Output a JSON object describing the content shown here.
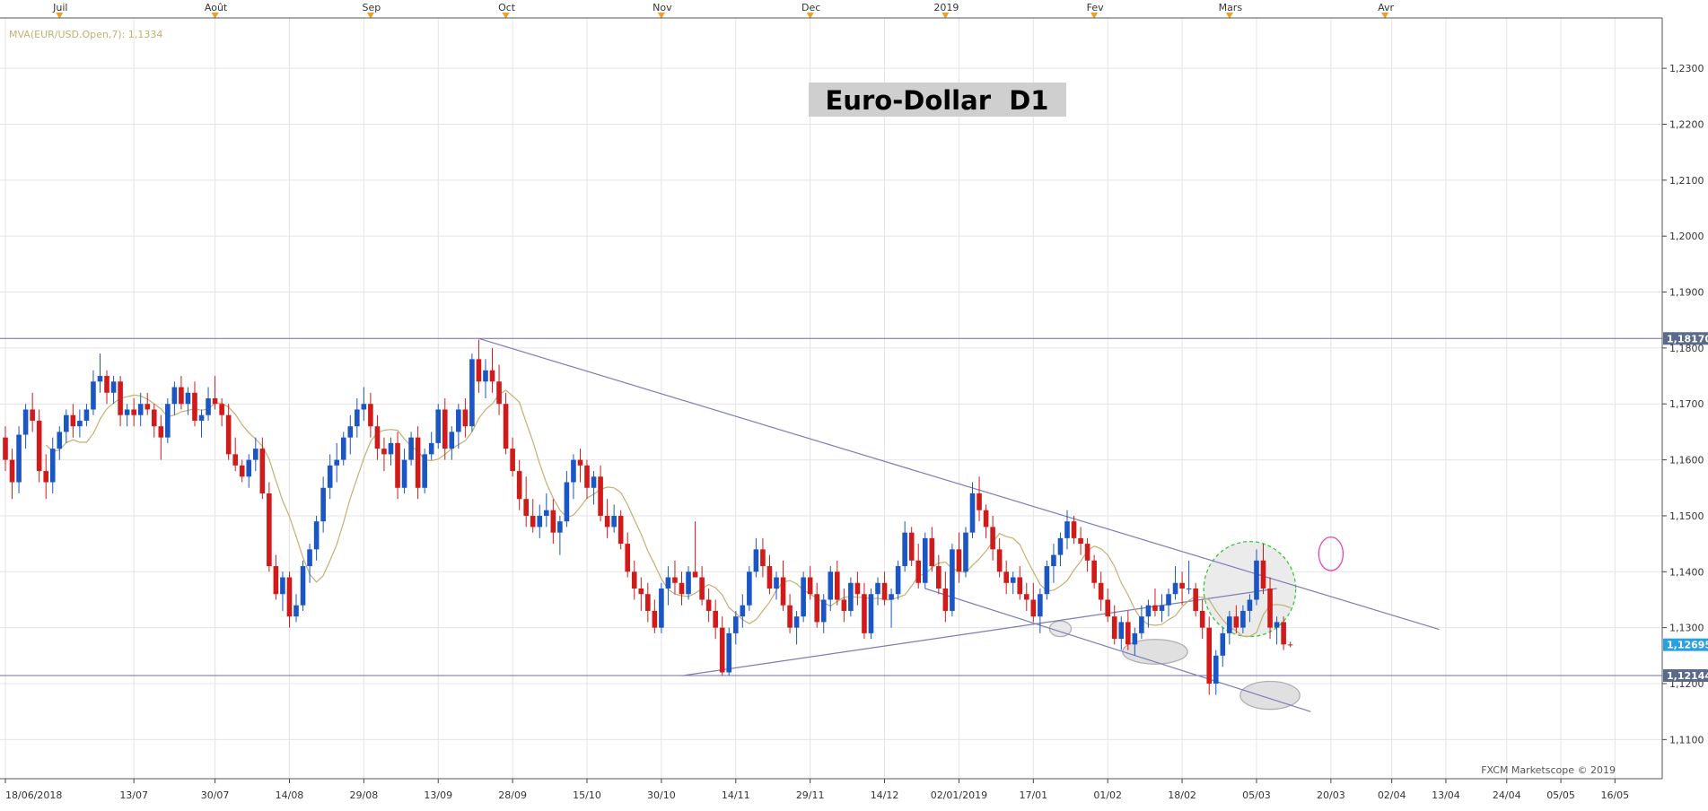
{
  "chart_data": {
    "type": "candlestick",
    "title": "Euro-Dollar  D1",
    "indicator_label": "MVA(EUR/USD.Open,7): 1,1334",
    "watermark": "FXCM Marketscope © 2019",
    "y_range": [
      1.103,
      1.239
    ],
    "y_ticks": [
      "1,1100",
      "1,1200",
      "1,1300",
      "1,1400",
      "1,1500",
      "1,1600",
      "1,1700",
      "1,1800",
      "1,1900",
      "1,2000",
      "1,2100",
      "1,2200",
      "1,2300"
    ],
    "y_tick_values": [
      1.11,
      1.12,
      1.13,
      1.14,
      1.15,
      1.16,
      1.17,
      1.18,
      1.19,
      1.2,
      1.21,
      1.22,
      1.23
    ],
    "x_tick_labels": [
      {
        "bar": 0,
        "label": "18/06/2018"
      },
      {
        "bar": 19,
        "label": "13/07"
      },
      {
        "bar": 31,
        "label": "30/07"
      },
      {
        "bar": 42,
        "label": "14/08"
      },
      {
        "bar": 53,
        "label": "29/08"
      },
      {
        "bar": 64,
        "label": "13/09"
      },
      {
        "bar": 75,
        "label": "28/09"
      },
      {
        "bar": 86,
        "label": "15/10"
      },
      {
        "bar": 97,
        "label": "30/10"
      },
      {
        "bar": 108,
        "label": "14/11"
      },
      {
        "bar": 119,
        "label": "29/11"
      },
      {
        "bar": 130,
        "label": "14/12"
      },
      {
        "bar": 141,
        "label": "02/01/2019"
      },
      {
        "bar": 152,
        "label": "17/01"
      },
      {
        "bar": 163,
        "label": "01/02"
      },
      {
        "bar": 174,
        "label": "18/02"
      },
      {
        "bar": 185,
        "label": "05/03"
      },
      {
        "bar": 196,
        "label": "20/03"
      },
      {
        "bar": 205,
        "label": "02/04"
      },
      {
        "bar": 213,
        "label": "13/04"
      },
      {
        "bar": 222,
        "label": "24/04"
      },
      {
        "bar": 230,
        "label": "05/05"
      },
      {
        "bar": 238,
        "label": "16/05"
      }
    ],
    "month_labels": [
      {
        "bar": 8,
        "label": "Juil"
      },
      {
        "bar": 31,
        "label": "Août"
      },
      {
        "bar": 54,
        "label": "Sep"
      },
      {
        "bar": 74,
        "label": "Oct"
      },
      {
        "bar": 97,
        "label": "Nov"
      },
      {
        "bar": 119,
        "label": "Dec"
      },
      {
        "bar": 139,
        "label": "2019"
      },
      {
        "bar": 161,
        "label": "Fev"
      },
      {
        "bar": 181,
        "label": "Mars"
      },
      {
        "bar": 204,
        "label": "Avr"
      }
    ],
    "price_markers": [
      {
        "value": 1.1817,
        "label": "1,18170",
        "color": "#5a6a8a"
      },
      {
        "value": 1.12144,
        "label": "1,12144",
        "color": "#5a6a8a"
      },
      {
        "value": 1.12695,
        "label": "1,12695",
        "color": "#2aa0e0"
      }
    ],
    "colors": {
      "up": "#1a56c4",
      "down": "#d11a1a",
      "ma": "#c2b070",
      "trend": "#7c7cb8",
      "grid": "#e4e4e4"
    },
    "horizontal_lines": [
      1.1817,
      1.12144
    ],
    "trend_lines": [
      {
        "from": [
          70,
          1.1817
        ],
        "to": [
          212,
          1.1297
        ]
      },
      {
        "from": [
          100,
          1.1214
        ],
        "to": [
          188,
          1.137
        ]
      },
      {
        "from": [
          136,
          1.137
        ],
        "to": [
          193,
          1.115
        ]
      }
    ],
    "ellipse_markers": [
      {
        "bar": 156,
        "value": 1.1298,
        "rx_bars": 1.6,
        "ry": 0.0014,
        "color": "#b0b0b0",
        "fill": "#e8e8e8"
      },
      {
        "bar": 170,
        "value": 1.1257,
        "rx_bars": 4.8,
        "ry": 0.0022,
        "color": "#b0b0b0",
        "fill": "#e0e0e0"
      },
      {
        "bar": 187,
        "value": 1.1179,
        "rx_bars": 4.4,
        "ry": 0.0025,
        "color": "#b0b0b0",
        "fill": "#e0e0e0"
      },
      {
        "bar": 184,
        "value": 1.1369,
        "rx_bars": 6.8,
        "ry": 0.0085,
        "color": "#33cc33",
        "fill": "#ebebeb",
        "dashed": true
      },
      {
        "bar": 196,
        "value": 1.1432,
        "rx_bars": 1.8,
        "ry": 0.003,
        "color": "#ee44aa",
        "fill": "none"
      }
    ],
    "candles": [
      [
        1.164,
        1.166,
        1.158,
        1.16
      ],
      [
        1.16,
        1.162,
        1.153,
        1.156
      ],
      [
        1.156,
        1.166,
        1.154,
        1.1645
      ],
      [
        1.1645,
        1.17,
        1.162,
        1.169
      ],
      [
        1.169,
        1.172,
        1.165,
        1.167
      ],
      [
        1.167,
        1.169,
        1.156,
        1.158
      ],
      [
        1.158,
        1.161,
        1.153,
        1.156
      ],
      [
        1.156,
        1.164,
        1.154,
        1.162
      ],
      [
        1.162,
        1.166,
        1.16,
        1.165
      ],
      [
        1.165,
        1.169,
        1.163,
        1.168
      ],
      [
        1.168,
        1.17,
        1.164,
        1.166
      ],
      [
        1.166,
        1.169,
        1.164,
        1.167
      ],
      [
        1.167,
        1.17,
        1.166,
        1.169
      ],
      [
        1.169,
        1.176,
        1.168,
        1.174
      ],
      [
        1.174,
        1.179,
        1.172,
        1.175
      ],
      [
        1.175,
        1.176,
        1.17,
        1.172
      ],
      [
        1.172,
        1.175,
        1.17,
        1.174
      ],
      [
        1.174,
        1.175,
        1.166,
        1.168
      ],
      [
        1.168,
        1.17,
        1.166,
        1.169
      ],
      [
        1.169,
        1.171,
        1.166,
        1.168
      ],
      [
        1.168,
        1.172,
        1.166,
        1.17
      ],
      [
        1.17,
        1.172,
        1.168,
        1.169
      ],
      [
        1.169,
        1.17,
        1.164,
        1.166
      ],
      [
        1.166,
        1.168,
        1.16,
        1.164
      ],
      [
        1.164,
        1.171,
        1.163,
        1.17
      ],
      [
        1.17,
        1.174,
        1.168,
        1.173
      ],
      [
        1.173,
        1.175,
        1.169,
        1.17
      ],
      [
        1.17,
        1.173,
        1.168,
        1.172
      ],
      [
        1.172,
        1.174,
        1.166,
        1.167
      ],
      [
        1.167,
        1.169,
        1.164,
        1.168
      ],
      [
        1.168,
        1.173,
        1.167,
        1.171
      ],
      [
        1.171,
        1.175,
        1.169,
        1.17
      ],
      [
        1.17,
        1.171,
        1.166,
        1.168
      ],
      [
        1.168,
        1.17,
        1.16,
        1.161
      ],
      [
        1.161,
        1.164,
        1.158,
        1.159
      ],
      [
        1.159,
        1.16,
        1.156,
        1.157
      ],
      [
        1.157,
        1.161,
        1.155,
        1.16
      ],
      [
        1.16,
        1.164,
        1.158,
        1.162
      ],
      [
        1.162,
        1.164,
        1.153,
        1.154
      ],
      [
        1.154,
        1.156,
        1.14,
        1.141
      ],
      [
        1.141,
        1.143,
        1.135,
        1.136
      ],
      [
        1.136,
        1.14,
        1.133,
        1.139
      ],
      [
        1.139,
        1.14,
        1.13,
        1.132
      ],
      [
        1.132,
        1.136,
        1.131,
        1.134
      ],
      [
        1.134,
        1.142,
        1.133,
        1.141
      ],
      [
        1.141,
        1.145,
        1.138,
        1.144
      ],
      [
        1.144,
        1.15,
        1.142,
        1.149
      ],
      [
        1.149,
        1.157,
        1.147,
        1.155
      ],
      [
        1.155,
        1.161,
        1.153,
        1.159
      ],
      [
        1.159,
        1.163,
        1.156,
        1.16
      ],
      [
        1.16,
        1.165,
        1.159,
        1.164
      ],
      [
        1.164,
        1.168,
        1.161,
        1.166
      ],
      [
        1.166,
        1.171,
        1.164,
        1.169
      ],
      [
        1.169,
        1.173,
        1.167,
        1.17
      ],
      [
        1.17,
        1.172,
        1.164,
        1.166
      ],
      [
        1.166,
        1.168,
        1.16,
        1.162
      ],
      [
        1.162,
        1.164,
        1.158,
        1.161
      ],
      [
        1.161,
        1.164,
        1.159,
        1.163
      ],
      [
        1.163,
        1.165,
        1.153,
        1.155
      ],
      [
        1.155,
        1.162,
        1.154,
        1.16
      ],
      [
        1.16,
        1.165,
        1.159,
        1.164
      ],
      [
        1.164,
        1.166,
        1.153,
        1.155
      ],
      [
        1.155,
        1.162,
        1.154,
        1.161
      ],
      [
        1.161,
        1.165,
        1.16,
        1.163
      ],
      [
        1.163,
        1.17,
        1.162,
        1.169
      ],
      [
        1.169,
        1.171,
        1.16,
        1.162
      ],
      [
        1.162,
        1.166,
        1.16,
        1.165
      ],
      [
        1.165,
        1.17,
        1.162,
        1.169
      ],
      [
        1.169,
        1.171,
        1.164,
        1.166
      ],
      [
        1.166,
        1.179,
        1.165,
        1.178
      ],
      [
        1.178,
        1.1815,
        1.172,
        1.174
      ],
      [
        1.174,
        1.178,
        1.171,
        1.176
      ],
      [
        1.176,
        1.18,
        1.172,
        1.174
      ],
      [
        1.174,
        1.177,
        1.168,
        1.17
      ],
      [
        1.17,
        1.172,
        1.161,
        1.162
      ],
      [
        1.162,
        1.164,
        1.157,
        1.158
      ],
      [
        1.158,
        1.16,
        1.151,
        1.153
      ],
      [
        1.153,
        1.157,
        1.148,
        1.15
      ],
      [
        1.15,
        1.153,
        1.147,
        1.148
      ],
      [
        1.148,
        1.152,
        1.146,
        1.15
      ],
      [
        1.15,
        1.154,
        1.148,
        1.151
      ],
      [
        1.151,
        1.153,
        1.145,
        1.147
      ],
      [
        1.147,
        1.15,
        1.143,
        1.149
      ],
      [
        1.149,
        1.158,
        1.148,
        1.156
      ],
      [
        1.156,
        1.161,
        1.153,
        1.16
      ],
      [
        1.16,
        1.162,
        1.156,
        1.159
      ],
      [
        1.159,
        1.16,
        1.153,
        1.155
      ],
      [
        1.155,
        1.158,
        1.152,
        1.157
      ],
      [
        1.157,
        1.159,
        1.149,
        1.15
      ],
      [
        1.15,
        1.153,
        1.146,
        1.148
      ],
      [
        1.148,
        1.152,
        1.147,
        1.15
      ],
      [
        1.15,
        1.151,
        1.144,
        1.145
      ],
      [
        1.145,
        1.147,
        1.139,
        1.14
      ],
      [
        1.14,
        1.142,
        1.135,
        1.137
      ],
      [
        1.137,
        1.139,
        1.133,
        1.136
      ],
      [
        1.136,
        1.138,
        1.131,
        1.133
      ],
      [
        1.133,
        1.135,
        1.129,
        1.13
      ],
      [
        1.13,
        1.138,
        1.129,
        1.137
      ],
      [
        1.137,
        1.141,
        1.134,
        1.139
      ],
      [
        1.139,
        1.142,
        1.136,
        1.138
      ],
      [
        1.138,
        1.14,
        1.134,
        1.136
      ],
      [
        1.136,
        1.141,
        1.135,
        1.14
      ],
      [
        1.14,
        1.149,
        1.139,
        1.139
      ],
      [
        1.139,
        1.141,
        1.134,
        1.135
      ],
      [
        1.135,
        1.137,
        1.131,
        1.133
      ],
      [
        1.133,
        1.135,
        1.128,
        1.13
      ],
      [
        1.13,
        1.132,
        1.1214,
        1.122
      ],
      [
        1.122,
        1.13,
        1.1214,
        1.129
      ],
      [
        1.129,
        1.133,
        1.127,
        1.132
      ],
      [
        1.132,
        1.136,
        1.13,
        1.134
      ],
      [
        1.134,
        1.141,
        1.133,
        1.14
      ],
      [
        1.14,
        1.146,
        1.139,
        1.144
      ],
      [
        1.144,
        1.146,
        1.139,
        1.141
      ],
      [
        1.141,
        1.143,
        1.136,
        1.137
      ],
      [
        1.137,
        1.14,
        1.135,
        1.139
      ],
      [
        1.139,
        1.142,
        1.133,
        1.134
      ],
      [
        1.134,
        1.136,
        1.129,
        1.13
      ],
      [
        1.13,
        1.133,
        1.127,
        1.132
      ],
      [
        1.132,
        1.14,
        1.131,
        1.139
      ],
      [
        1.139,
        1.141,
        1.135,
        1.136
      ],
      [
        1.136,
        1.138,
        1.13,
        1.131
      ],
      [
        1.131,
        1.136,
        1.129,
        1.135
      ],
      [
        1.135,
        1.141,
        1.133,
        1.14
      ],
      [
        1.14,
        1.142,
        1.134,
        1.135
      ],
      [
        1.135,
        1.137,
        1.131,
        1.133
      ],
      [
        1.133,
        1.139,
        1.132,
        1.138
      ],
      [
        1.138,
        1.14,
        1.134,
        1.136
      ],
      [
        1.136,
        1.138,
        1.128,
        1.129
      ],
      [
        1.129,
        1.137,
        1.128,
        1.136
      ],
      [
        1.136,
        1.139,
        1.134,
        1.138
      ],
      [
        1.138,
        1.14,
        1.134,
        1.135
      ],
      [
        1.135,
        1.137,
        1.13,
        1.136
      ],
      [
        1.136,
        1.142,
        1.135,
        1.141
      ],
      [
        1.141,
        1.149,
        1.14,
        1.147
      ],
      [
        1.147,
        1.148,
        1.141,
        1.142
      ],
      [
        1.142,
        1.145,
        1.137,
        1.138
      ],
      [
        1.138,
        1.147,
        1.137,
        1.146
      ],
      [
        1.146,
        1.148,
        1.14,
        1.141
      ],
      [
        1.141,
        1.143,
        1.136,
        1.137
      ],
      [
        1.137,
        1.14,
        1.131,
        1.133
      ],
      [
        1.133,
        1.145,
        1.132,
        1.144
      ],
      [
        1.144,
        1.147,
        1.138,
        1.14
      ],
      [
        1.14,
        1.148,
        1.139,
        1.147
      ],
      [
        1.147,
        1.156,
        1.146,
        1.154
      ],
      [
        1.154,
        1.157,
        1.149,
        1.151
      ],
      [
        1.151,
        1.152,
        1.146,
        1.148
      ],
      [
        1.148,
        1.15,
        1.142,
        1.144
      ],
      [
        1.144,
        1.146,
        1.139,
        1.14
      ],
      [
        1.14,
        1.142,
        1.136,
        1.138
      ],
      [
        1.138,
        1.14,
        1.136,
        1.139
      ],
      [
        1.139,
        1.141,
        1.135,
        1.136
      ],
      [
        1.136,
        1.138,
        1.133,
        1.135
      ],
      [
        1.135,
        1.138,
        1.131,
        1.132
      ],
      [
        1.132,
        1.137,
        1.129,
        1.136
      ],
      [
        1.136,
        1.142,
        1.135,
        1.141
      ],
      [
        1.141,
        1.145,
        1.138,
        1.143
      ],
      [
        1.143,
        1.147,
        1.141,
        1.146
      ],
      [
        1.146,
        1.151,
        1.144,
        1.149
      ],
      [
        1.149,
        1.15,
        1.145,
        1.146
      ],
      [
        1.146,
        1.148,
        1.143,
        1.145
      ],
      [
        1.145,
        1.146,
        1.14,
        1.142
      ],
      [
        1.142,
        1.143,
        1.137,
        1.138
      ],
      [
        1.138,
        1.14,
        1.133,
        1.135
      ],
      [
        1.135,
        1.137,
        1.131,
        1.132
      ],
      [
        1.132,
        1.134,
        1.127,
        1.128
      ],
      [
        1.128,
        1.132,
        1.126,
        1.131
      ],
      [
        1.131,
        1.133,
        1.126,
        1.127
      ],
      [
        1.127,
        1.13,
        1.125,
        1.129
      ],
      [
        1.129,
        1.134,
        1.128,
        1.132
      ],
      [
        1.132,
        1.135,
        1.13,
        1.134
      ],
      [
        1.134,
        1.137,
        1.132,
        1.133
      ],
      [
        1.133,
        1.136,
        1.131,
        1.134
      ],
      [
        1.134,
        1.137,
        1.132,
        1.136
      ],
      [
        1.136,
        1.141,
        1.135,
        1.138
      ],
      [
        1.138,
        1.14,
        1.134,
        1.137
      ],
      [
        1.137,
        1.142,
        1.136,
        1.137
      ],
      [
        1.137,
        1.138,
        1.132,
        1.133
      ],
      [
        1.133,
        1.135,
        1.128,
        1.13
      ],
      [
        1.13,
        1.132,
        1.118,
        1.12
      ],
      [
        1.12,
        1.126,
        1.118,
        1.125
      ],
      [
        1.125,
        1.13,
        1.123,
        1.129
      ],
      [
        1.129,
        1.133,
        1.127,
        1.132
      ],
      [
        1.132,
        1.134,
        1.129,
        1.13
      ],
      [
        1.13,
        1.134,
        1.129,
        1.133
      ],
      [
        1.133,
        1.136,
        1.131,
        1.135
      ],
      [
        1.135,
        1.144,
        1.134,
        1.142
      ],
      [
        1.142,
        1.145,
        1.136,
        1.137
      ],
      [
        1.137,
        1.139,
        1.128,
        1.13
      ],
      [
        1.13,
        1.132,
        1.127,
        1.131
      ],
      [
        1.131,
        1.132,
        1.126,
        1.127
      ],
      [
        1.127,
        1.1275,
        1.1265,
        1.12695
      ]
    ]
  }
}
